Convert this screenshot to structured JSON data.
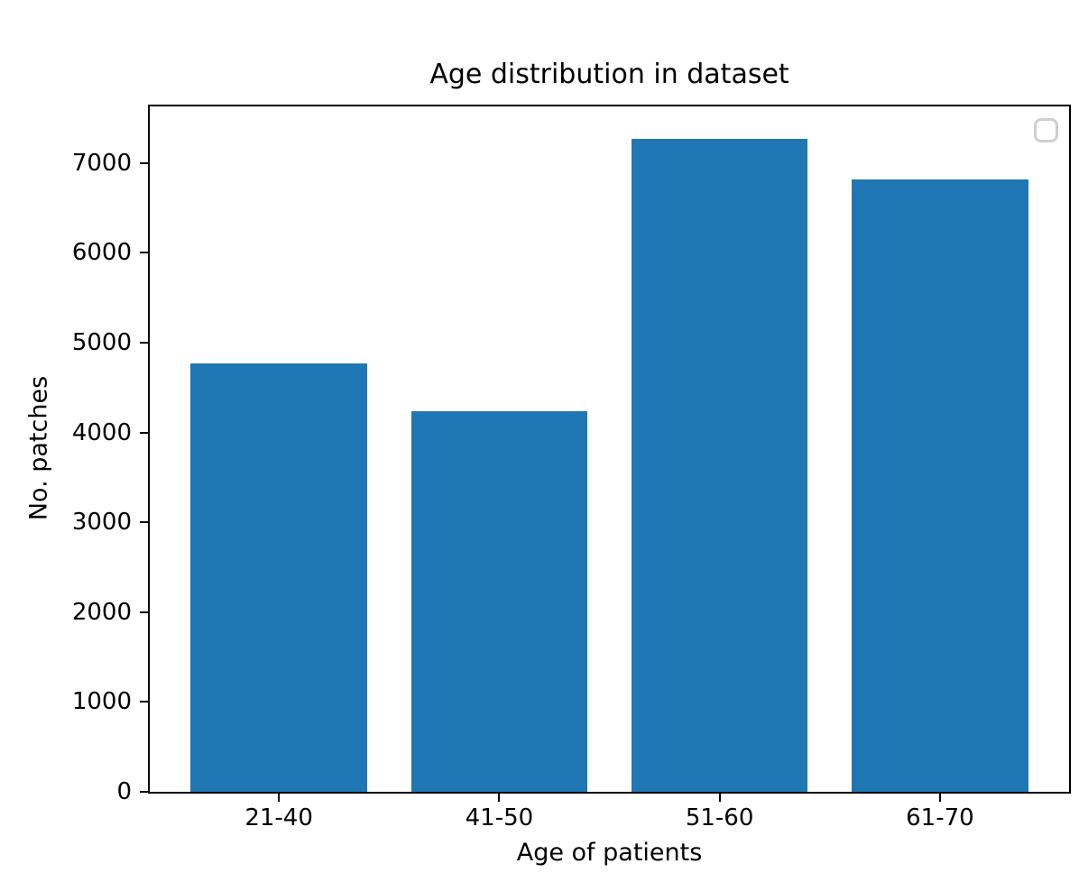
{
  "figure": {
    "background": "#ffffff"
  },
  "chart_data": {
    "type": "bar",
    "title": "Age distribution in dataset",
    "xlabel": "Age of patients",
    "ylabel": "No. patches",
    "categories": [
      "21-40",
      "41-50",
      "51-60",
      "61-70"
    ],
    "values": [
      4770,
      4240,
      7270,
      6820
    ],
    "yticks": [
      0,
      1000,
      2000,
      3000,
      4000,
      5000,
      6000,
      7000
    ],
    "ylim": [
      0,
      7650
    ],
    "xlim": [
      -0.59,
      3.59
    ],
    "bar_width": 0.8,
    "bar_color": "#1f77b4",
    "axis_color": "#000000",
    "text_color": "#000000",
    "grid": false,
    "legend": {
      "position": "upper right",
      "entries": [],
      "empty_frame": true,
      "frame_color": "#cfcfcf"
    }
  }
}
